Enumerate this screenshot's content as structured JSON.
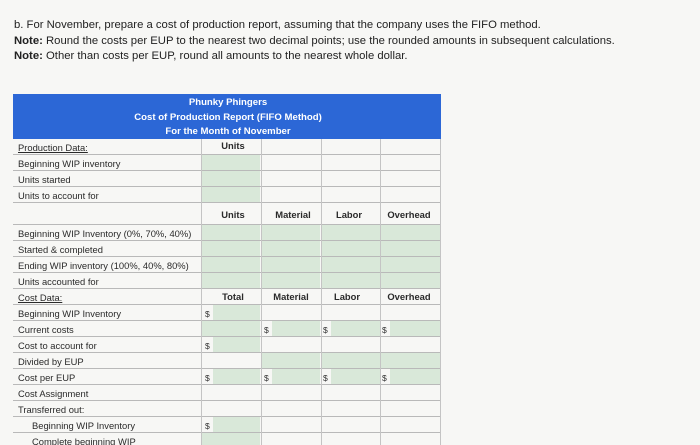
{
  "instructions": {
    "line1": "b. For November, prepare a cost of production report, assuming that the company uses the FIFO method.",
    "note1_label": "Note:",
    "note1_text": " Round the costs per EUP to the nearest two decimal points; use the rounded amounts in subsequent calculations.",
    "note2_label": "Note:",
    "note2_text": " Other than costs per EUP, round all amounts to the nearest whole dollar."
  },
  "report": {
    "company": "Phunky Phingers",
    "title": "Cost of Production Report (FIFO Method)",
    "period": "For the Month of November",
    "units_header_1": "Units",
    "production_data_label": "Production Data:",
    "production_rows": [
      "Beginning WIP inventory",
      "Units started",
      "Units to account for"
    ],
    "headers_2": [
      "Units",
      "Material",
      "Labor",
      "Overhead"
    ],
    "eup_rows": [
      "Beginning WIP Inventory (0%, 70%, 40%)",
      "Started & completed",
      "Ending WIP inventory (100%, 40%, 80%)",
      "Units accounted for"
    ],
    "cost_data_label": "Cost Data:",
    "headers_3": [
      "Total",
      "Material",
      "Labor",
      "Overhead"
    ],
    "cost_rows": [
      "Beginning WIP Inventory",
      "Current costs",
      "Cost to account for",
      "Divided by EUP",
      "Cost per EUP",
      "Cost Assignment",
      "Transferred out:"
    ],
    "assign_rows": [
      "Beginning WIP Inventory",
      "Complete beginning WIP"
    ],
    "currency_symbol": "$"
  },
  "colors": {
    "banner": "#2c67d6",
    "input_cell": "#d9e8d9"
  }
}
